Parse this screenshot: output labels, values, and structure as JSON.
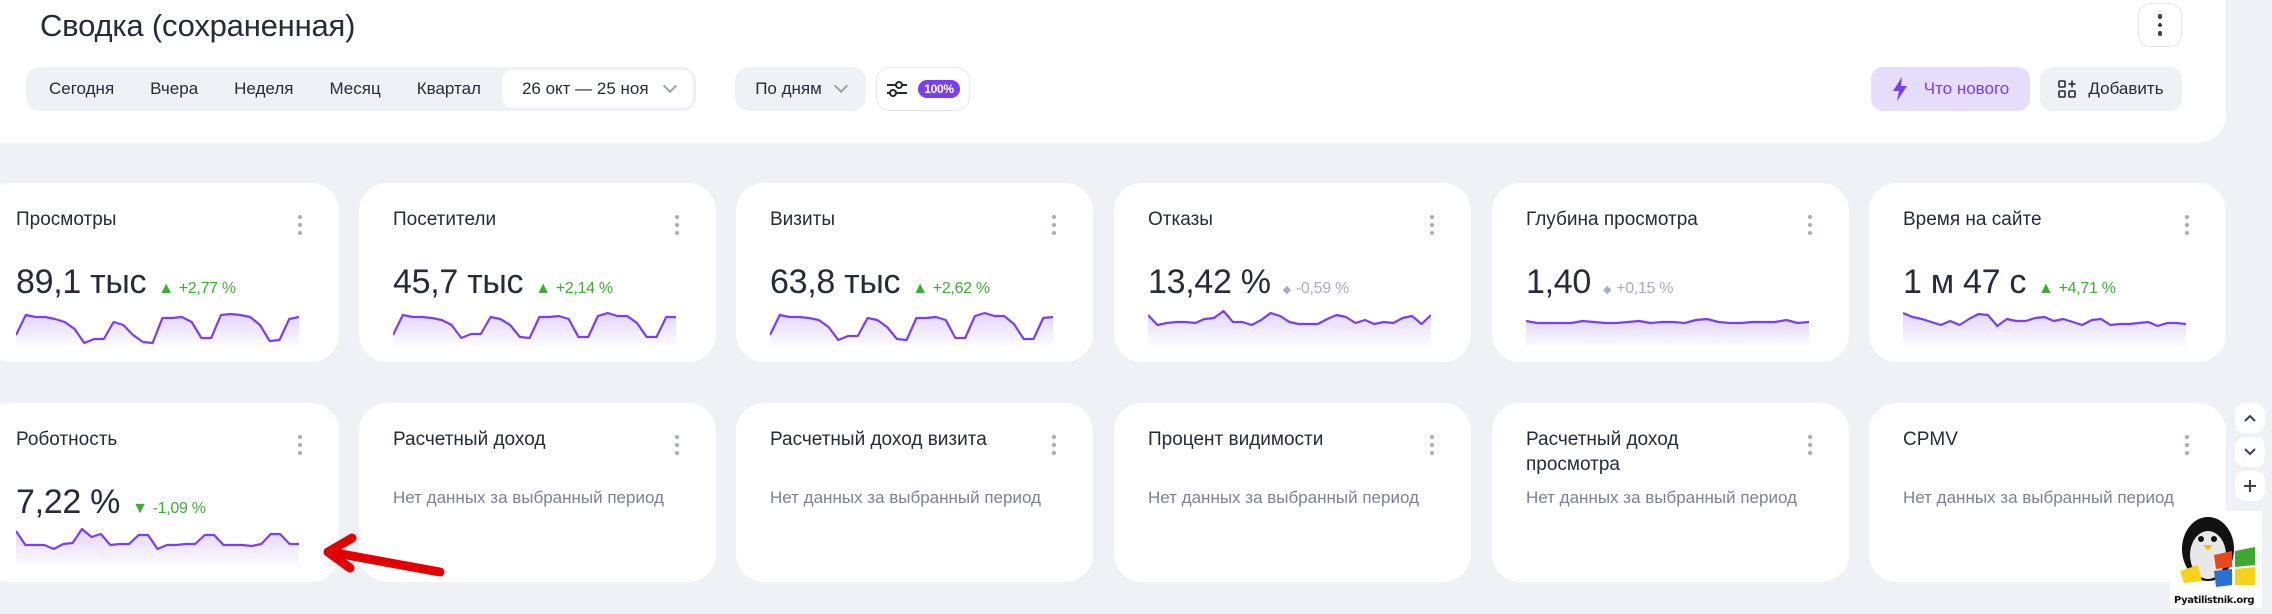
{
  "header": {
    "title": "Сводка (сохраненная)",
    "title_menu_icon": "more-vertical-icon",
    "periods": [
      "Сегодня",
      "Вчера",
      "Неделя",
      "Месяц",
      "Квартал"
    ],
    "date_range": "26 окт — 25 ноя",
    "grouping": "По дням",
    "sampling_badge": "100%",
    "whats_new_label": "Что нового",
    "add_label": "Добавить"
  },
  "colors": {
    "accent": "#7a3ff0",
    "accent_bg": "#e6dcfc",
    "positive": "#3dab34",
    "neutral": "#a7adbb",
    "page_bg": "#eef1f6",
    "card_bg": "#ffffff",
    "text": "#252b38",
    "muted": "#7b8192",
    "annotation_arrow": "#e00000"
  },
  "cards": [
    {
      "title": "Просмотры",
      "value": "89,1 тыс",
      "delta": "+2,77 %",
      "trend": "up",
      "spark": [
        30,
        10,
        12,
        12,
        14,
        17,
        24,
        38,
        34,
        34,
        17,
        20,
        30,
        37,
        38,
        13,
        13,
        12,
        17,
        33,
        33,
        10,
        9,
        10,
        12,
        20,
        36,
        35,
        14,
        12
      ]
    },
    {
      "title": "Посетители",
      "value": "45,7 тыс",
      "delta": "+2,14 %",
      "trend": "up",
      "spark": [
        30,
        10,
        12,
        12,
        13,
        15,
        20,
        33,
        29,
        29,
        12,
        14,
        20,
        32,
        33,
        12,
        12,
        11,
        14,
        32,
        32,
        11,
        8,
        11,
        11,
        18,
        32,
        32,
        12,
        12
      ]
    },
    {
      "title": "Визиты",
      "value": "63,8 тыс",
      "delta": "+2,62 %",
      "trend": "up",
      "spark": [
        30,
        10,
        12,
        12,
        13,
        15,
        22,
        35,
        31,
        31,
        13,
        15,
        22,
        34,
        35,
        13,
        13,
        12,
        15,
        33,
        33,
        11,
        8,
        11,
        11,
        19,
        34,
        34,
        13,
        12
      ]
    },
    {
      "title": "Отказы",
      "value": "13,42 %",
      "delta": "-0,59 %",
      "trend": "neutral",
      "spark": [
        10,
        20,
        18,
        17,
        17,
        18,
        14,
        13,
        6,
        17,
        17,
        20,
        15,
        8,
        11,
        17,
        19,
        19,
        19,
        14,
        10,
        12,
        18,
        15,
        19,
        17,
        18,
        13,
        11,
        19,
        10
      ]
    },
    {
      "title": "Глубина просмотра",
      "value": "1,40",
      "delta": "+0,15 %",
      "trend": "neutral",
      "spark": [
        16,
        18,
        18,
        18,
        18,
        16,
        17,
        18,
        18,
        17,
        16,
        18,
        17,
        17,
        18,
        15,
        14,
        17,
        18,
        18,
        17,
        17,
        17,
        15,
        18,
        17
      ]
    },
    {
      "title": "Время на сайте",
      "value": "1 м 47 с",
      "delta": "+4,71 %",
      "trend": "up",
      "spark": [
        8,
        12,
        14,
        17,
        20,
        16,
        20,
        14,
        9,
        10,
        21,
        14,
        16,
        16,
        13,
        12,
        16,
        14,
        17,
        20,
        15,
        14,
        20,
        19,
        19,
        18,
        17,
        21,
        18,
        18,
        19
      ]
    },
    {
      "title": "Роботность",
      "value": "7,22 %",
      "delta": "-1,09 %",
      "trend": "down",
      "spark": [
        6,
        20,
        20,
        20,
        24,
        19,
        18,
        4,
        12,
        9,
        20,
        19,
        19,
        10,
        10,
        24,
        20,
        20,
        19,
        19,
        10,
        10,
        20,
        20,
        20,
        21,
        19,
        9,
        9,
        19,
        19
      ]
    },
    {
      "title": "Расчетный доход",
      "no_data": "Нет данных за выбранный период"
    },
    {
      "title": "Расчетный доход визита",
      "no_data": "Нет данных за выбранный период"
    },
    {
      "title": "Процент видимости",
      "no_data": "Нет данных за выбранный период"
    },
    {
      "title": "Расчетный доход просмотра",
      "no_data": "Нет данных за выбранный период"
    },
    {
      "title": "CPMV",
      "no_data": "Нет данных за выбранный период"
    }
  ],
  "side_controls": {
    "up": "chevron-up-icon",
    "down": "chevron-down-icon",
    "add": "plus-icon"
  },
  "watermark": {
    "text": "Pyatilistnik.org"
  }
}
